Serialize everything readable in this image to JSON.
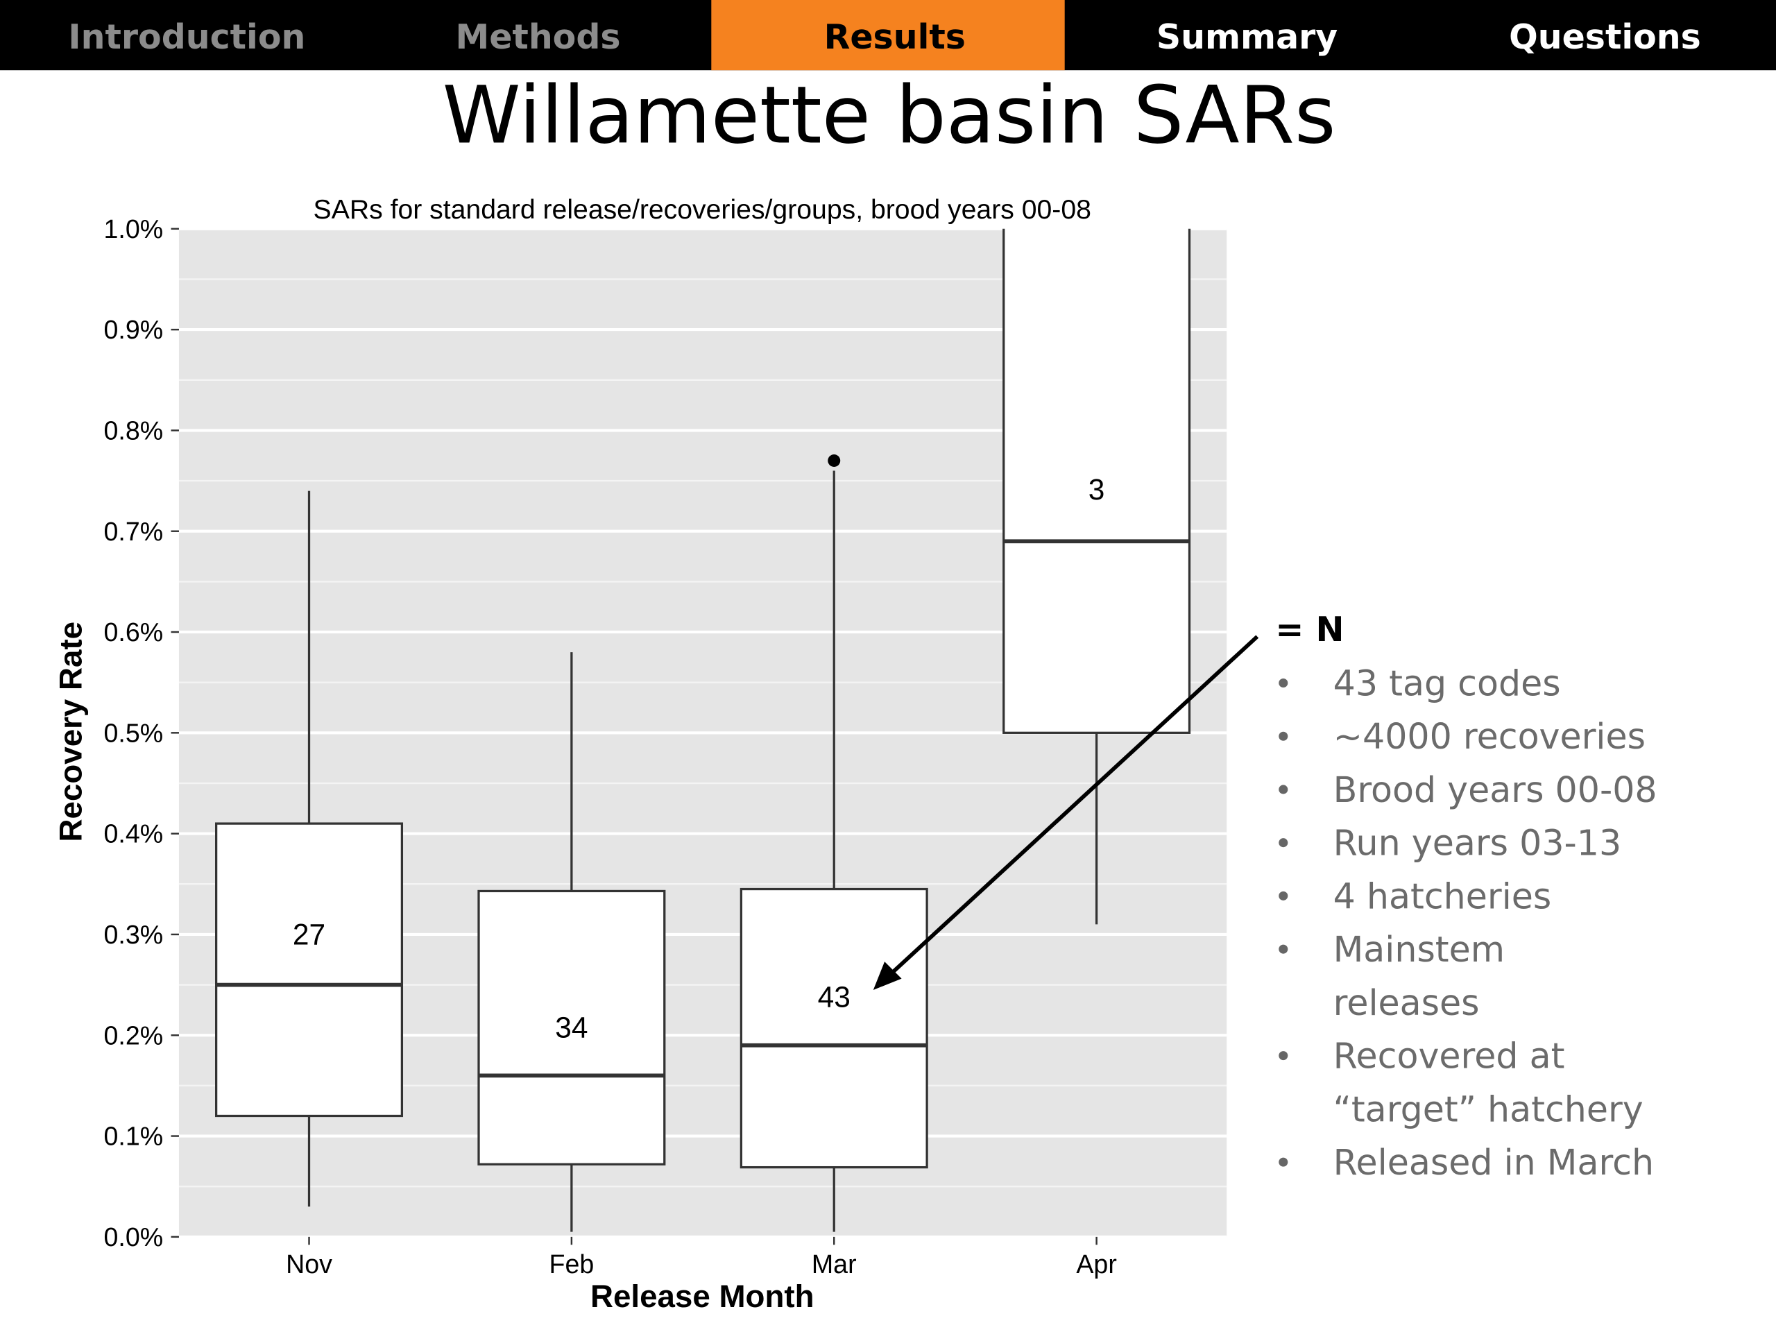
{
  "nav": {
    "tabs": [
      "Introduction",
      "Methods",
      "Results",
      "Summary",
      "Questions"
    ],
    "active": 2
  },
  "slide_title": "Willamette basin SARs",
  "chart_data": {
    "type": "boxplot",
    "title": "SARs for standard release/recoveries/groups, brood years 00-08",
    "x_label": "Release Month",
    "y_label": "Recovery Rate",
    "categories": [
      "Nov",
      "Feb",
      "Mar",
      "Apr"
    ],
    "values": [
      {
        "whisker_low": 0.03,
        "q1": 0.12,
        "median": 0.25,
        "q3": 0.41,
        "whisker_high": 0.74,
        "outliers": []
      },
      {
        "whisker_low": 0.005,
        "q1": 0.072,
        "median": 0.16,
        "q3": 0.343,
        "whisker_high": 0.58,
        "outliers": []
      },
      {
        "whisker_low": 0.005,
        "q1": 0.069,
        "median": 0.19,
        "q3": 0.345,
        "whisker_high": 0.76,
        "outliers": [
          0.77
        ]
      },
      {
        "whisker_low": 0.31,
        "q1": 0.5,
        "median": 0.69,
        "q3": null,
        "whisker_high": null,
        "outliers": []
      }
    ],
    "n_labels": [
      27,
      34,
      43,
      3
    ],
    "ylim": [
      0,
      1
    ],
    "yticks": [
      {
        "value": 0,
        "label": "0.0%"
      },
      {
        "value": 0.1,
        "label": "0.1%"
      },
      {
        "value": 0.2,
        "label": "0.2%"
      },
      {
        "value": 0.3,
        "label": "0.3%"
      },
      {
        "value": 0.4,
        "label": "0.4%"
      },
      {
        "value": 0.5,
        "label": "0.5%"
      },
      {
        "value": 0.6,
        "label": "0.6%"
      },
      {
        "value": 0.7,
        "label": "0.7%"
      },
      {
        "value": 0.8,
        "label": "0.8%"
      },
      {
        "value": 0.9,
        "label": "0.9%"
      },
      {
        "value": 1,
        "label": "1.0%"
      }
    ],
    "minor_yticks": [
      0.05,
      0.15,
      0.25,
      0.35,
      0.45,
      0.55,
      0.65,
      0.75,
      0.85,
      0.95
    ],
    "grid": true
  },
  "annotation": "= N",
  "bullets": [
    [
      "43 tag codes"
    ],
    [
      "~4000 recoveries"
    ],
    [
      "Brood years 00-08"
    ],
    [
      "Run years 03-13"
    ],
    [
      "4 hatcheries"
    ],
    [
      "Mainstem",
      "releases"
    ],
    [
      "Recovered at",
      "“target” hatchery"
    ],
    [
      "Released in March"
    ]
  ]
}
